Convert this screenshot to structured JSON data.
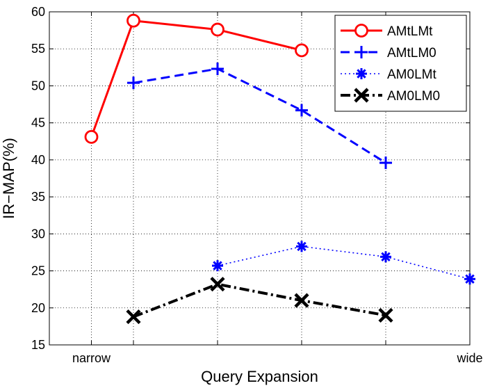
{
  "chart_data": {
    "type": "line",
    "xlabel": "Query Expansion",
    "ylabel": "IR−MAP(%)",
    "x_ticks": [
      {
        "x": 1,
        "label": "narrow"
      },
      {
        "x": 1.5,
        "label": ""
      },
      {
        "x": 2.5,
        "label": ""
      },
      {
        "x": 3.5,
        "label": ""
      },
      {
        "x": 4.5,
        "label": ""
      },
      {
        "x": 5.5,
        "label": "wide"
      }
    ],
    "xlim": [
      0.5,
      5.5
    ],
    "ylim": [
      15,
      60
    ],
    "yticks": [
      15,
      20,
      25,
      30,
      35,
      40,
      45,
      50,
      55,
      60
    ],
    "grid": true,
    "legend_position": "top-right",
    "series": [
      {
        "name": "AMtLMt",
        "color": "#ff0000",
        "line_style": "solid",
        "marker": "circle",
        "points": [
          [
            1,
            43.1
          ],
          [
            1.5,
            58.8
          ],
          [
            2.5,
            57.6
          ],
          [
            3.5,
            54.8
          ]
        ]
      },
      {
        "name": "AMtLM0",
        "color": "#0000ff",
        "line_style": "dashed",
        "marker": "plus",
        "points": [
          [
            1.5,
            50.4
          ],
          [
            2.5,
            52.3
          ],
          [
            3.5,
            46.7
          ],
          [
            4.5,
            39.6
          ]
        ]
      },
      {
        "name": "AM0LMt",
        "color": "#0000ff",
        "line_style": "dotted",
        "marker": "asterisk",
        "points": [
          [
            2.5,
            25.7
          ],
          [
            3.5,
            28.3
          ],
          [
            4.5,
            26.9
          ],
          [
            5.5,
            23.9
          ]
        ]
      },
      {
        "name": "AM0LM0",
        "color": "#000000",
        "line_style": "dashdot",
        "marker": "x",
        "points": [
          [
            1.5,
            18.8
          ],
          [
            2.5,
            23.2
          ],
          [
            3.5,
            21.0
          ],
          [
            4.5,
            19.0
          ]
        ]
      }
    ]
  }
}
